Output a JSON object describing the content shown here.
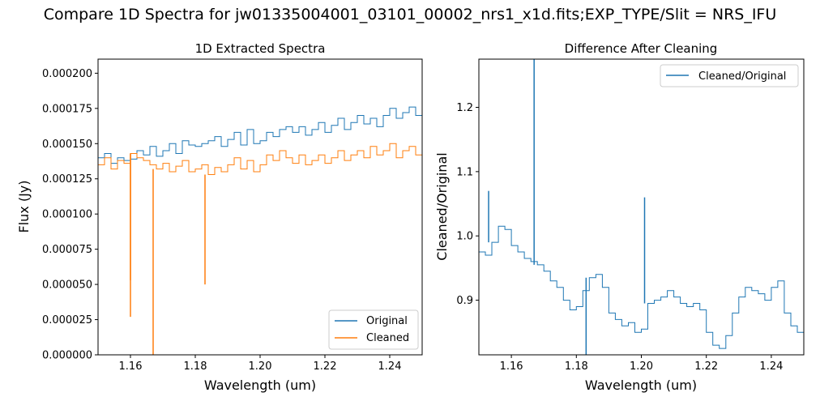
{
  "page": {
    "suptitle": "Compare 1D Spectra for jw01335004001_03101_00002_nrs1_x1d.fits;EXP_TYPE/Slit = NRS_IFU"
  },
  "colors": {
    "original": "#1f77b4",
    "cleaned": "#ff7f0e",
    "axis": "#000000",
    "background": "#ffffff",
    "legend_border": "#cccccc"
  },
  "chart_data": [
    {
      "type": "line",
      "title": "1D Extracted Spectra",
      "xlabel": "Wavelength (um)",
      "ylabel": "Flux (Jy)",
      "xlim": [
        1.15,
        1.25
      ],
      "ylim": [
        0.0,
        0.00021
      ],
      "xticks": [
        1.16,
        1.18,
        1.2,
        1.22,
        1.24
      ],
      "xtick_labels": [
        "1.16",
        "1.18",
        "1.20",
        "1.22",
        "1.24"
      ],
      "yticks": [
        0.0,
        2.5e-05,
        5e-05,
        7.5e-05,
        0.0001,
        0.000125,
        0.00015,
        0.000175,
        0.0002
      ],
      "ytick_labels": [
        "0.000000",
        "0.000025",
        "0.000050",
        "0.000075",
        "0.000100",
        "0.000125",
        "0.000150",
        "0.000175",
        "0.000200"
      ],
      "legend": {
        "position": "lower-right",
        "entries": [
          "Original",
          "Cleaned"
        ]
      },
      "series": [
        {
          "name": "Original",
          "color": "#1f77b4",
          "x": [
            1.15,
            1.152,
            1.154,
            1.156,
            1.158,
            1.16,
            1.162,
            1.164,
            1.166,
            1.168,
            1.17,
            1.172,
            1.174,
            1.176,
            1.178,
            1.18,
            1.182,
            1.184,
            1.186,
            1.188,
            1.19,
            1.192,
            1.194,
            1.196,
            1.198,
            1.2,
            1.202,
            1.204,
            1.206,
            1.208,
            1.21,
            1.212,
            1.214,
            1.216,
            1.218,
            1.22,
            1.222,
            1.224,
            1.226,
            1.228,
            1.23,
            1.232,
            1.234,
            1.236,
            1.238,
            1.24,
            1.242,
            1.244,
            1.246,
            1.248,
            1.25
          ],
          "values": [
            0.00014,
            0.000143,
            0.000136,
            0.00014,
            0.000138,
            0.000139,
            0.000145,
            0.000142,
            0.000148,
            0.000141,
            0.000145,
            0.00015,
            0.000143,
            0.000152,
            0.000149,
            0.000148,
            0.00015,
            0.000152,
            0.000155,
            0.000148,
            0.000153,
            0.000158,
            0.000149,
            0.00016,
            0.00015,
            0.000152,
            0.000158,
            0.000155,
            0.00016,
            0.000162,
            0.000158,
            0.000162,
            0.000156,
            0.00016,
            0.000165,
            0.000158,
            0.000163,
            0.000168,
            0.00016,
            0.000165,
            0.00017,
            0.000164,
            0.000168,
            0.000162,
            0.00017,
            0.000175,
            0.000168,
            0.000172,
            0.000176,
            0.00017,
            0.000165
          ]
        },
        {
          "name": "Cleaned",
          "color": "#ff7f0e",
          "x": [
            1.15,
            1.152,
            1.154,
            1.156,
            1.158,
            1.16,
            1.162,
            1.164,
            1.166,
            1.168,
            1.17,
            1.172,
            1.174,
            1.176,
            1.178,
            1.18,
            1.182,
            1.184,
            1.186,
            1.188,
            1.19,
            1.192,
            1.194,
            1.196,
            1.198,
            1.2,
            1.202,
            1.204,
            1.206,
            1.208,
            1.21,
            1.212,
            1.214,
            1.216,
            1.218,
            1.22,
            1.222,
            1.224,
            1.226,
            1.228,
            1.23,
            1.232,
            1.234,
            1.236,
            1.238,
            1.24,
            1.242,
            1.244,
            1.246,
            1.248,
            1.25
          ],
          "values": [
            0.000135,
            0.00014,
            0.000132,
            0.000138,
            0.000136,
            0.000143,
            0.00014,
            0.000138,
            0.000135,
            0.000132,
            0.000136,
            0.00013,
            0.000134,
            0.000138,
            0.00013,
            0.000132,
            0.000135,
            0.000128,
            0.000133,
            0.00013,
            0.000135,
            0.00014,
            0.000132,
            0.000138,
            0.00013,
            0.000135,
            0.000142,
            0.000138,
            0.000145,
            0.00014,
            0.000136,
            0.000142,
            0.000135,
            0.000138,
            0.000142,
            0.000136,
            0.00014,
            0.000145,
            0.000138,
            0.000142,
            0.000145,
            0.00014,
            0.000148,
            0.000142,
            0.000145,
            0.00015,
            0.00014,
            0.000145,
            0.000148,
            0.000142,
            0.000138
          ]
        }
      ],
      "annotations": [
        {
          "type": "dip",
          "x": 1.16,
          "values": [
            5.3e-05,
            2.7e-05
          ]
        },
        {
          "type": "dip",
          "x": 1.167,
          "values": [
            0.0
          ]
        },
        {
          "type": "dip",
          "x": 1.183,
          "values": [
            5e-05
          ]
        }
      ]
    },
    {
      "type": "line",
      "title": "Difference After Cleaning",
      "xlabel": "Wavelength (um)",
      "ylabel": "Cleaned/Original",
      "xlim": [
        1.15,
        1.25
      ],
      "ylim": [
        0.815,
        1.275
      ],
      "xticks": [
        1.16,
        1.18,
        1.2,
        1.22,
        1.24
      ],
      "xtick_labels": [
        "1.16",
        "1.18",
        "1.20",
        "1.22",
        "1.24"
      ],
      "yticks": [
        0.9,
        1.0,
        1.1,
        1.2
      ],
      "ytick_labels": [
        "0.9",
        "1.0",
        "1.1",
        "1.2"
      ],
      "legend": {
        "position": "upper-right",
        "entries": [
          "Cleaned/Original"
        ]
      },
      "series": [
        {
          "name": "Cleaned/Original",
          "color": "#1f77b4",
          "x": [
            1.15,
            1.152,
            1.154,
            1.156,
            1.158,
            1.16,
            1.162,
            1.164,
            1.166,
            1.168,
            1.17,
            1.172,
            1.174,
            1.176,
            1.178,
            1.18,
            1.182,
            1.184,
            1.186,
            1.188,
            1.19,
            1.192,
            1.194,
            1.196,
            1.198,
            1.2,
            1.202,
            1.204,
            1.206,
            1.208,
            1.21,
            1.212,
            1.214,
            1.216,
            1.218,
            1.22,
            1.222,
            1.224,
            1.226,
            1.228,
            1.23,
            1.232,
            1.234,
            1.236,
            1.238,
            1.24,
            1.242,
            1.244,
            1.246,
            1.248,
            1.25
          ],
          "values": [
            0.975,
            0.97,
            0.99,
            1.015,
            1.01,
            0.985,
            0.975,
            0.965,
            0.96,
            0.955,
            0.945,
            0.93,
            0.92,
            0.9,
            0.885,
            0.89,
            0.915,
            0.935,
            0.94,
            0.92,
            0.88,
            0.87,
            0.86,
            0.865,
            0.85,
            0.855,
            0.895,
            0.9,
            0.905,
            0.915,
            0.905,
            0.895,
            0.89,
            0.895,
            0.885,
            0.85,
            0.83,
            0.825,
            0.845,
            0.88,
            0.905,
            0.92,
            0.915,
            0.91,
            0.9,
            0.92,
            0.93,
            0.88,
            0.86,
            0.85,
            0.86
          ]
        }
      ],
      "annotations": [
        {
          "type": "spike",
          "x": 1.153,
          "value": 1.07
        },
        {
          "type": "spike",
          "x": 1.167,
          "value": 1.275
        },
        {
          "type": "spike",
          "x": 1.183,
          "value": 0.815
        },
        {
          "type": "spike",
          "x": 1.201,
          "value": 1.06
        }
      ]
    }
  ]
}
